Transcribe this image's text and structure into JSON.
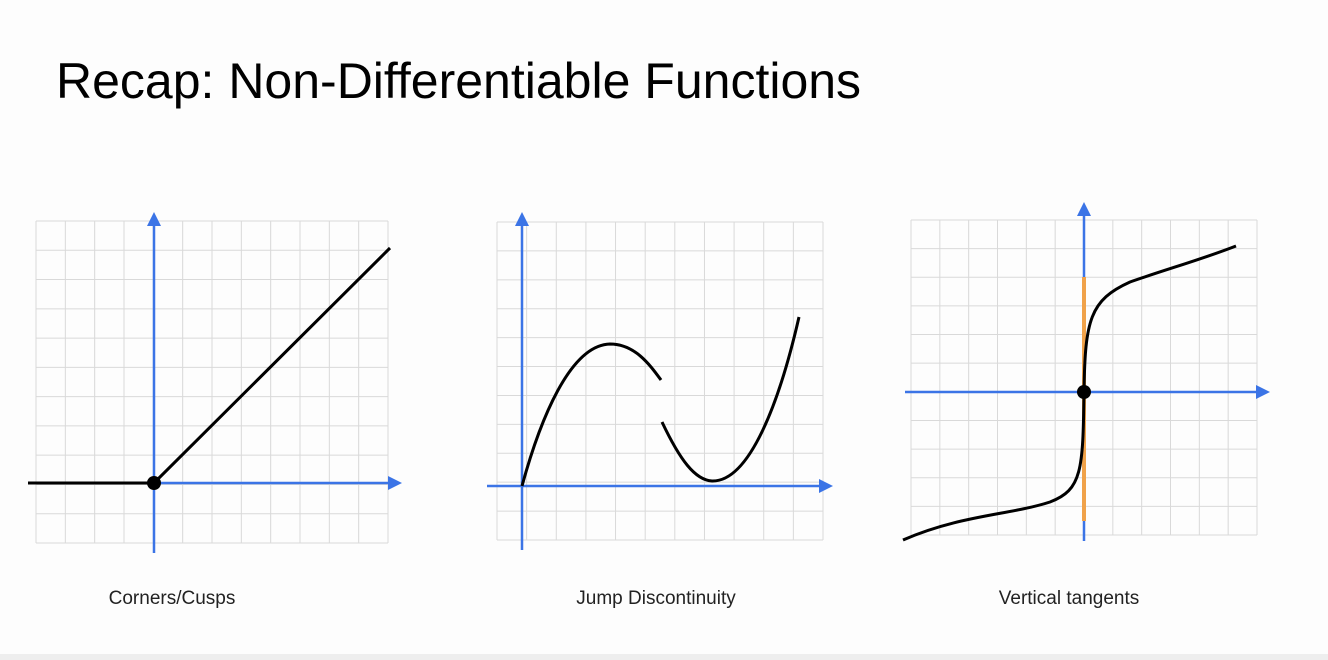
{
  "slide": {
    "title": "Recap: Non-Differentiable Functions",
    "diagrams": [
      {
        "caption": "Corners/Cusps"
      },
      {
        "caption": "Jump Discontinuity"
      },
      {
        "caption": "Vertical tangents"
      }
    ]
  },
  "colors": {
    "axis": "#3b74e6",
    "curve": "#000000",
    "tangent": "#f0a24a",
    "grid": "#d9d9d9"
  }
}
